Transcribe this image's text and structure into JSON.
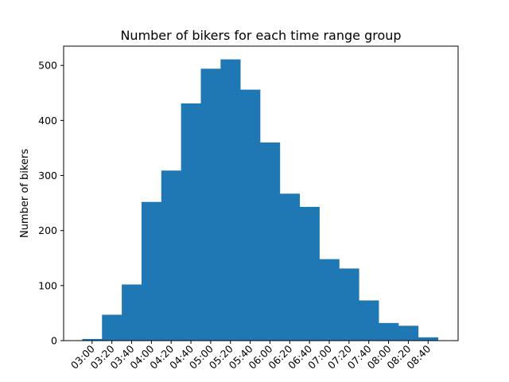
{
  "chart_data": {
    "type": "bar",
    "title": "Number of bikers for each time range group",
    "xlabel": "",
    "ylabel": "Number of bikers",
    "x_tick_labels": [
      "03:00",
      "03:20",
      "03:40",
      "04:00",
      "04:20",
      "04:40",
      "05:00",
      "05:20",
      "05:40",
      "06:00",
      "06:20",
      "06:40",
      "07:00",
      "07:20",
      "07:40",
      "08:00",
      "08:20",
      "08:40"
    ],
    "y_ticks": [
      0,
      100,
      200,
      300,
      400,
      500
    ],
    "ylim": [
      0,
      535
    ],
    "values": [
      3,
      47,
      102,
      252,
      309,
      431,
      494,
      511,
      456,
      360,
      267,
      243,
      148,
      131,
      73,
      32,
      27,
      6
    ],
    "bar_color": "#1f77b4",
    "grid": false,
    "legend": "none"
  }
}
